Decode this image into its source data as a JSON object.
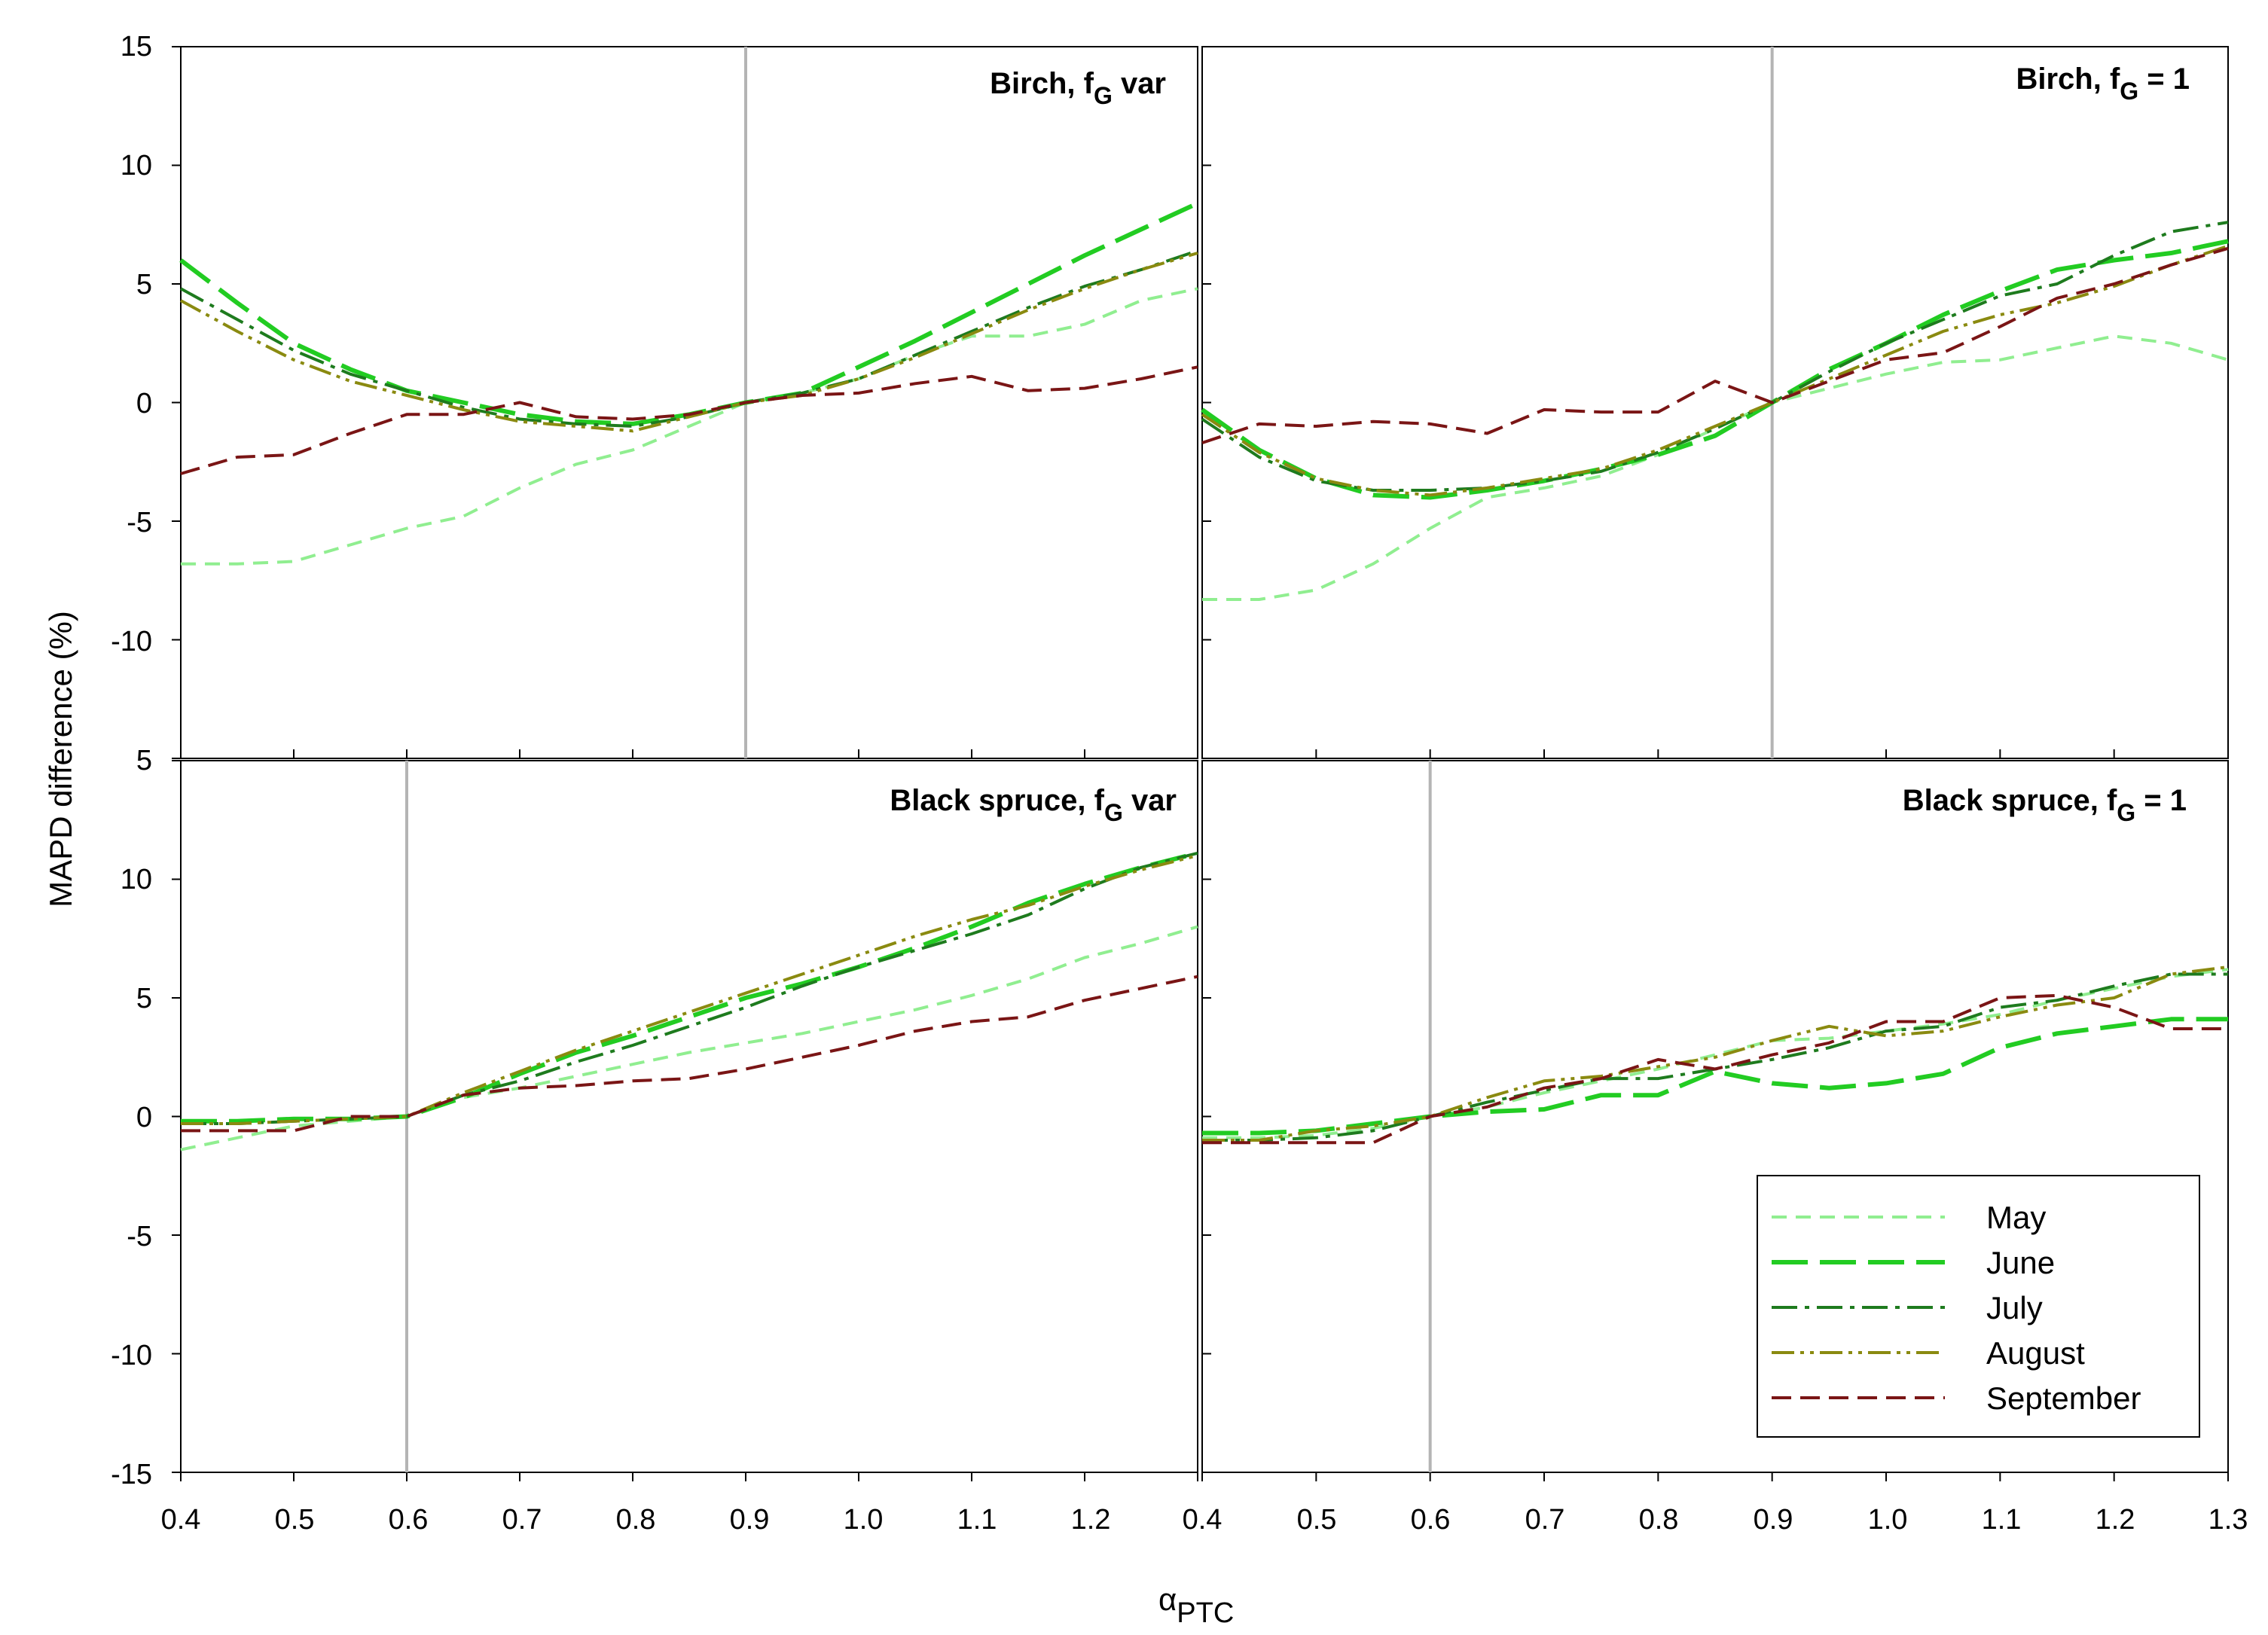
{
  "axis": {
    "ylabel": "MAPD difference (%)",
    "xlabel_main": "α",
    "xlabel_sub": "PTC"
  },
  "tick_labels": {
    "top_y": [
      "15",
      "10",
      "5",
      "0",
      "-5",
      "-10",
      "5"
    ],
    "bottom_y": [
      "10",
      "5",
      "0",
      "-5",
      "-10",
      "-15"
    ],
    "x": [
      "0.4",
      "0.5",
      "0.6",
      "0.7",
      "0.8",
      "0.9",
      "1.0",
      "1.1",
      "1.2",
      "1.3"
    ]
  },
  "legend": {
    "labels": [
      "May",
      "June",
      "July",
      "August",
      "September"
    ]
  },
  "colors": {
    "May": "#90ee90",
    "June": "#22cc22",
    "July": "#1e7b1e",
    "August": "#8a8a10",
    "September": "#7a1515",
    "reference_line": "#b4b4b4"
  },
  "panels": {
    "p1": {
      "title_main": "Birch, f",
      "title_sub": "G",
      "title_tail": " var"
    },
    "p2": {
      "title_main": "Birch, f",
      "title_sub": "G",
      "title_tail": " = 1"
    },
    "p3": {
      "title_main": "Black spruce, f",
      "title_sub": "G",
      "title_tail": " var"
    },
    "p4": {
      "title_main": "Black spruce, f",
      "title_sub": "G",
      "title_tail": " = 1"
    }
  },
  "chart_data": [
    {
      "type": "line",
      "title": "Birch, fG var",
      "xlabel": "αPTC",
      "ylabel": "MAPD difference (%)",
      "xlim": [
        0.4,
        1.3
      ],
      "ylim": [
        -15,
        15
      ],
      "reference_x": 0.9,
      "x": [
        0.4,
        0.45,
        0.5,
        0.55,
        0.6,
        0.65,
        0.7,
        0.75,
        0.8,
        0.85,
        0.9,
        0.95,
        1.0,
        1.05,
        1.1,
        1.15,
        1.2,
        1.25,
        1.3
      ],
      "series": [
        {
          "name": "May",
          "values": [
            -6.8,
            -6.8,
            -6.7,
            -6.0,
            -5.3,
            -4.8,
            -3.6,
            -2.6,
            -2.0,
            -1.0,
            0.0,
            0.4,
            1.0,
            2.0,
            2.8,
            2.8,
            3.3,
            4.3,
            4.8
          ]
        },
        {
          "name": "June",
          "values": [
            6.0,
            4.2,
            2.5,
            1.4,
            0.5,
            0.0,
            -0.5,
            -0.8,
            -0.9,
            -0.5,
            0.0,
            0.4,
            1.5,
            2.6,
            3.8,
            5.0,
            6.2,
            7.3,
            8.4
          ]
        },
        {
          "name": "July",
          "values": [
            4.8,
            3.5,
            2.2,
            1.2,
            0.5,
            -0.2,
            -0.7,
            -0.9,
            -1.0,
            -0.6,
            0.0,
            0.4,
            1.0,
            2.0,
            3.0,
            4.0,
            4.9,
            5.6,
            6.4
          ]
        },
        {
          "name": "August",
          "values": [
            4.3,
            3.0,
            1.8,
            0.9,
            0.3,
            -0.3,
            -0.8,
            -1.0,
            -1.2,
            -0.6,
            0.0,
            0.3,
            1.0,
            1.9,
            2.9,
            3.9,
            4.8,
            5.6,
            6.3
          ]
        },
        {
          "name": "September",
          "values": [
            -3.0,
            -2.3,
            -2.2,
            -1.3,
            -0.5,
            -0.5,
            0.0,
            -0.6,
            -0.7,
            -0.5,
            0.0,
            0.3,
            0.4,
            0.8,
            1.1,
            0.5,
            0.6,
            1.0,
            1.5
          ]
        }
      ]
    },
    {
      "type": "line",
      "title": "Birch, fG = 1",
      "xlabel": "αPTC",
      "ylabel": "MAPD difference (%)",
      "xlim": [
        0.4,
        1.3
      ],
      "ylim": [
        -15,
        15
      ],
      "reference_x": 0.9,
      "x": [
        0.4,
        0.45,
        0.5,
        0.55,
        0.6,
        0.65,
        0.7,
        0.75,
        0.8,
        0.85,
        0.9,
        0.95,
        1.0,
        1.05,
        1.1,
        1.15,
        1.2,
        1.25,
        1.3
      ],
      "series": [
        {
          "name": "May",
          "values": [
            -8.3,
            -8.3,
            -7.9,
            -6.8,
            -5.3,
            -4.0,
            -3.6,
            -3.1,
            -2.2,
            -1.1,
            0.0,
            0.6,
            1.2,
            1.7,
            1.8,
            2.3,
            2.8,
            2.5,
            1.8
          ]
        },
        {
          "name": "June",
          "values": [
            -0.3,
            -2.0,
            -3.2,
            -3.9,
            -4.0,
            -3.7,
            -3.3,
            -2.8,
            -2.2,
            -1.4,
            0.0,
            1.4,
            2.5,
            3.7,
            4.7,
            5.6,
            6.0,
            6.3,
            6.8
          ]
        },
        {
          "name": "July",
          "values": [
            -0.7,
            -2.3,
            -3.3,
            -3.7,
            -3.7,
            -3.6,
            -3.3,
            -2.9,
            -2.1,
            -1.1,
            0.0,
            1.3,
            2.5,
            3.5,
            4.5,
            5.0,
            6.2,
            7.2,
            7.6
          ]
        },
        {
          "name": "August",
          "values": [
            -0.5,
            -2.1,
            -3.2,
            -3.7,
            -3.9,
            -3.6,
            -3.2,
            -2.8,
            -2.0,
            -1.0,
            0.0,
            1.0,
            2.0,
            3.0,
            3.7,
            4.2,
            4.9,
            5.8,
            6.6
          ]
        },
        {
          "name": "September",
          "values": [
            -1.7,
            -0.9,
            -1.0,
            -0.8,
            -0.9,
            -1.3,
            -0.3,
            -0.4,
            -0.4,
            0.9,
            0.0,
            0.9,
            1.8,
            2.1,
            3.2,
            4.4,
            5.0,
            5.8,
            6.5
          ]
        }
      ]
    },
    {
      "type": "line",
      "title": "Black spruce, fG var",
      "xlabel": "αPTC",
      "ylabel": "MAPD difference (%)",
      "xlim": [
        0.4,
        1.3
      ],
      "ylim": [
        -15,
        15
      ],
      "reference_x": 0.6,
      "x": [
        0.4,
        0.45,
        0.5,
        0.55,
        0.6,
        0.65,
        0.7,
        0.75,
        0.8,
        0.85,
        0.9,
        0.95,
        1.0,
        1.05,
        1.1,
        1.15,
        1.2,
        1.25,
        1.3
      ],
      "series": [
        {
          "name": "May",
          "values": [
            -1.4,
            -0.9,
            -0.4,
            -0.2,
            0.0,
            0.8,
            1.2,
            1.7,
            2.2,
            2.7,
            3.1,
            3.5,
            4.0,
            4.5,
            5.1,
            5.8,
            6.7,
            7.3,
            8.0
          ]
        },
        {
          "name": "June",
          "values": [
            -0.2,
            -0.2,
            -0.1,
            -0.1,
            0.0,
            0.8,
            1.8,
            2.7,
            3.4,
            4.2,
            5.0,
            5.6,
            6.3,
            7.1,
            8.0,
            9.0,
            9.8,
            10.5,
            11.1
          ]
        },
        {
          "name": "July",
          "values": [
            -0.3,
            -0.3,
            -0.2,
            -0.1,
            0.0,
            0.9,
            1.5,
            2.3,
            3.0,
            3.8,
            4.6,
            5.5,
            6.3,
            7.0,
            7.7,
            8.5,
            9.6,
            10.5,
            11.1
          ]
        },
        {
          "name": "August",
          "values": [
            -0.3,
            -0.3,
            -0.2,
            -0.1,
            0.0,
            1.0,
            1.9,
            2.8,
            3.6,
            4.4,
            5.2,
            6.0,
            6.8,
            7.6,
            8.3,
            8.9,
            9.7,
            10.4,
            11.0
          ]
        },
        {
          "name": "September",
          "values": [
            -0.6,
            -0.6,
            -0.6,
            0.0,
            0.0,
            0.9,
            1.2,
            1.3,
            1.5,
            1.6,
            2.0,
            2.5,
            3.0,
            3.6,
            4.0,
            4.2,
            4.9,
            5.4,
            5.9
          ]
        }
      ]
    },
    {
      "type": "line",
      "title": "Black spruce, fG = 1",
      "xlabel": "αPTC",
      "ylabel": "MAPD difference (%)",
      "xlim": [
        0.4,
        1.3
      ],
      "ylim": [
        -15,
        15
      ],
      "reference_x": 0.6,
      "x": [
        0.4,
        0.45,
        0.5,
        0.55,
        0.6,
        0.65,
        0.7,
        0.75,
        0.8,
        0.85,
        0.9,
        0.95,
        1.0,
        1.05,
        1.1,
        1.15,
        1.2,
        1.25,
        1.3
      ],
      "series": [
        {
          "name": "May",
          "values": [
            -0.9,
            -0.9,
            -0.8,
            -0.5,
            0.0,
            0.4,
            1.0,
            1.5,
            2.0,
            2.6,
            3.2,
            3.3,
            3.6,
            3.9,
            4.3,
            4.9,
            5.4,
            5.9,
            6.2
          ]
        },
        {
          "name": "June",
          "values": [
            -0.7,
            -0.7,
            -0.6,
            -0.3,
            0.0,
            0.2,
            0.3,
            0.9,
            0.9,
            1.9,
            1.4,
            1.2,
            1.4,
            1.8,
            2.9,
            3.5,
            3.8,
            4.1,
            4.1
          ]
        },
        {
          "name": "July",
          "values": [
            -1.0,
            -1.0,
            -0.9,
            -0.6,
            0.0,
            0.6,
            1.1,
            1.6,
            1.6,
            2.0,
            2.4,
            2.9,
            3.6,
            3.8,
            4.6,
            4.9,
            5.5,
            6.0,
            6.0
          ]
        },
        {
          "name": "August",
          "values": [
            -1.0,
            -1.0,
            -0.6,
            -0.4,
            0.0,
            0.8,
            1.5,
            1.7,
            2.1,
            2.5,
            3.2,
            3.8,
            3.4,
            3.6,
            4.2,
            4.7,
            5.0,
            6.0,
            6.3
          ]
        },
        {
          "name": "September",
          "values": [
            -1.1,
            -1.1,
            -1.1,
            -1.1,
            0.0,
            0.4,
            1.2,
            1.6,
            2.4,
            2.0,
            2.6,
            3.1,
            4.0,
            4.0,
            5.0,
            5.1,
            4.6,
            3.7,
            3.7
          ]
        }
      ]
    }
  ]
}
